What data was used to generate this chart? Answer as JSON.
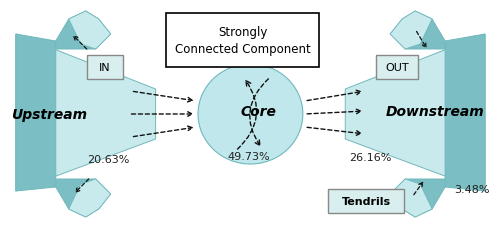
{
  "bg_color": "#ffffff",
  "shape_color": "#aad8dc",
  "shape_color_light": "#c8eaed",
  "shape_color_dark": "#7bbfc4",
  "shape_edge_color": "#70b8bc",
  "labels": {
    "upstream": "Upstream",
    "downstream": "Downstream",
    "core": "Core",
    "in": "IN",
    "out": "OUT",
    "tendrils": "Tendrils",
    "scc": "Strongly\nConnected Component"
  },
  "percentages": {
    "upstream": "20.63%",
    "core": "49.73%",
    "downstream": "26.16%",
    "tendrils": "3.48%"
  }
}
